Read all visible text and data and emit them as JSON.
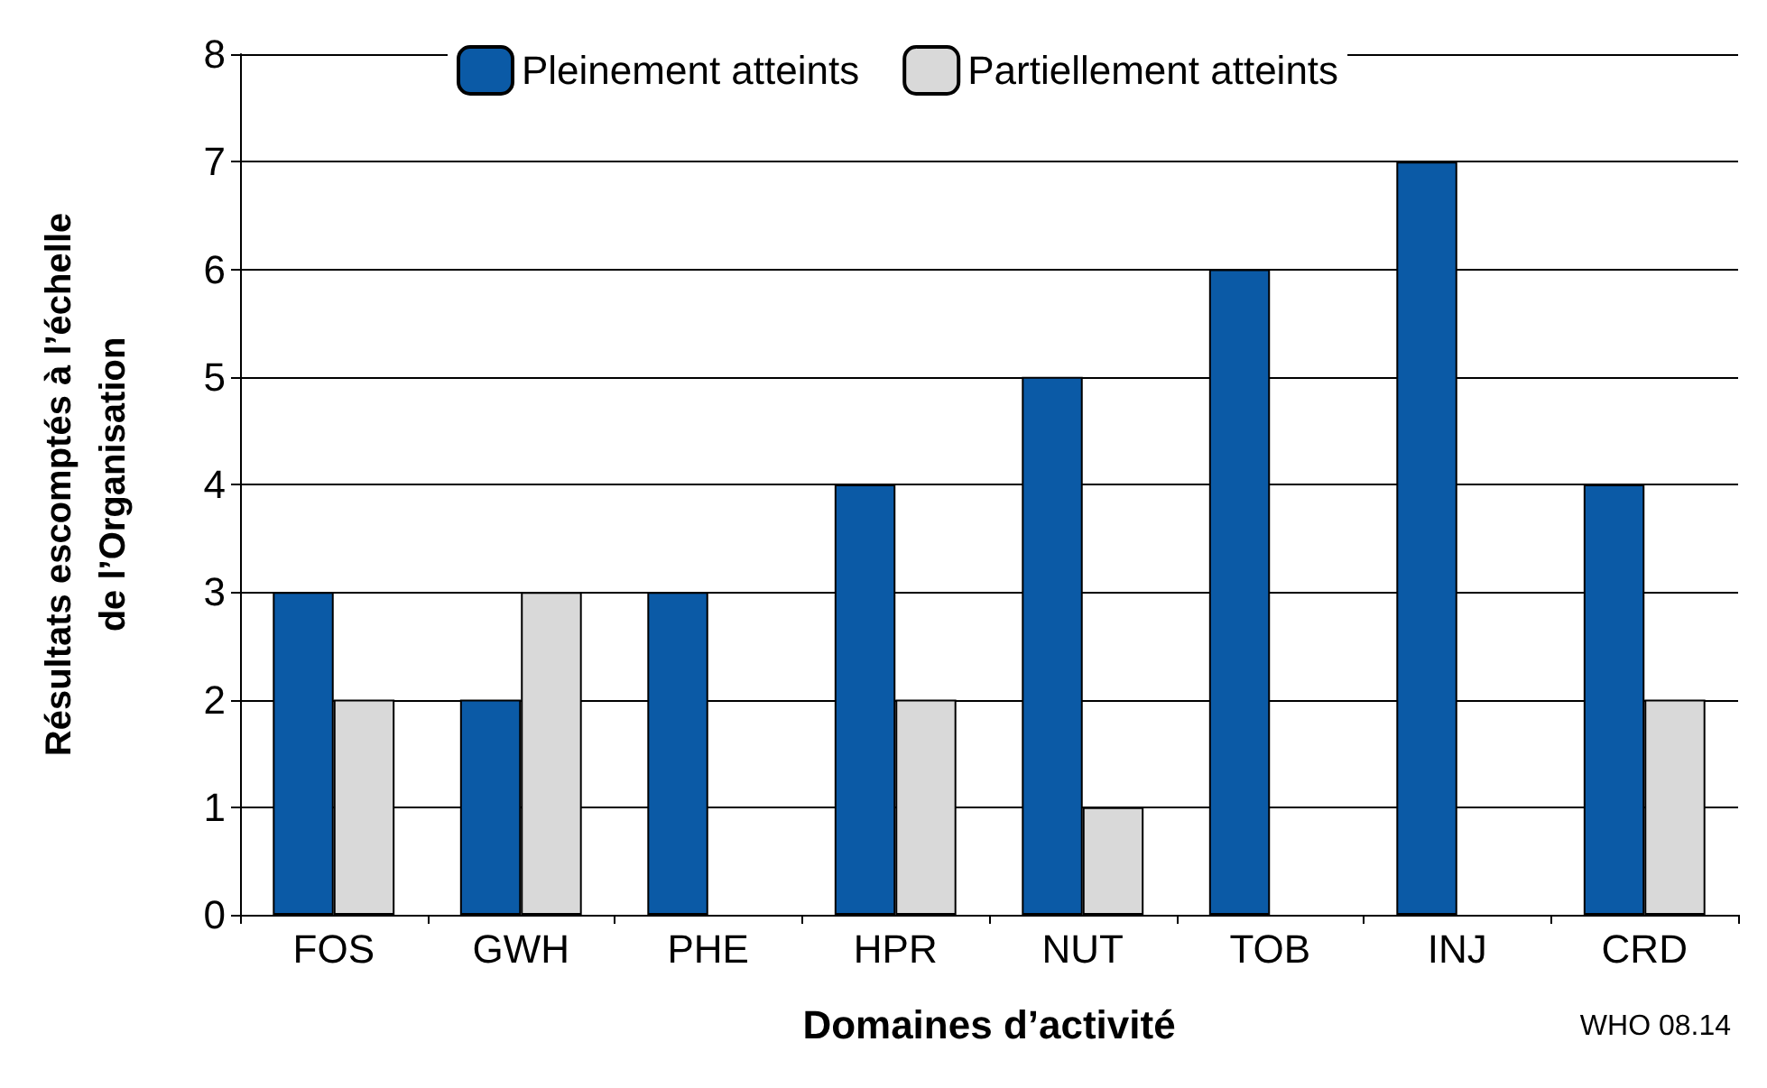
{
  "chart_data": {
    "type": "bar",
    "xlabel": "Domaines d’activité",
    "ylabel": "Résultats escomptés à l’échelle\nde l’Organisation",
    "categories": [
      "FOS",
      "GWH",
      "PHE",
      "HPR",
      "NUT",
      "TOB",
      "INJ",
      "CRD"
    ],
    "series": [
      {
        "name": "Pleinement atteints",
        "color": "#0b5aa6",
        "values": [
          3,
          2,
          3,
          4,
          5,
          6,
          7,
          4
        ]
      },
      {
        "name": "Partiellement atteints",
        "color": "#d9d9d9",
        "values": [
          2,
          3,
          null,
          2,
          1,
          null,
          null,
          2
        ]
      }
    ],
    "ylim": [
      0,
      8
    ],
    "yticks": [
      0,
      1,
      2,
      3,
      4,
      5,
      6,
      7,
      8
    ],
    "grid": "y",
    "legend": "top",
    "annotations": [
      "WHO 08.14"
    ]
  }
}
